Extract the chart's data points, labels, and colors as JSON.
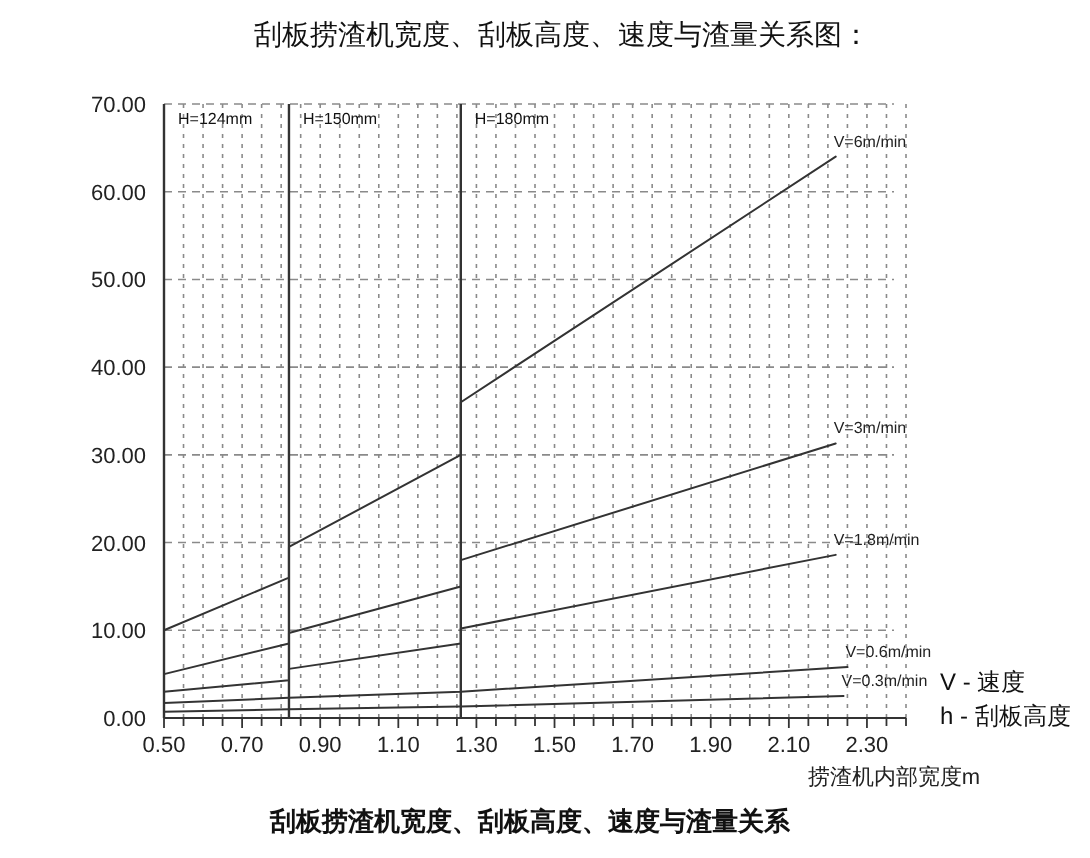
{
  "chart_data": {
    "type": "line",
    "title": "刮板捞渣机宽度、刮板高度、速度与渣量关系图：",
    "xlabel": "捞渣机内部宽度m",
    "annotations": [
      "H=124mm",
      "H=150mm",
      "H=180mm",
      "V - 速度",
      "h - 刮板高度",
      "刮板捞渣机宽度、刮板高度、速度与渣量关系"
    ],
    "x": [
      0.5,
      0.82,
      0.82,
      1.26,
      1.26,
      2.22
    ],
    "series": [
      {
        "name": "V=6m/min",
        "color": "#333333",
        "values": [
          10,
          16,
          19.5,
          30,
          36,
          64
        ]
      },
      {
        "name": "V=3m/min",
        "color": "#333333",
        "values": [
          5,
          8.5,
          9.7,
          15,
          18,
          31.3
        ]
      },
      {
        "name": "V=1.8m/min",
        "color": "#333333",
        "values": [
          3,
          4.3,
          5.6,
          8.5,
          10.2,
          18.6
        ]
      },
      {
        "name": "V=0.6m/min",
        "color": "#333333",
        "x": [
          0.5,
          0.82,
          0.82,
          1.26,
          1.26,
          2.25
        ],
        "values": [
          1.7,
          2.3,
          2.3,
          3,
          3,
          5.8
        ]
      },
      {
        "name": "V=0.3m/min",
        "color": "#333333",
        "x": [
          0.5,
          0.82,
          0.82,
          1.26,
          1.26,
          2.24
        ],
        "values": [
          0.7,
          1,
          1,
          1.3,
          1.3,
          2.5
        ]
      }
    ],
    "xlim": [
      0.5,
      2.4
    ],
    "ylim": [
      0,
      70
    ],
    "xticks": [
      {
        "value": 0.5,
        "label": "0.50"
      },
      {
        "value": 0.55,
        "label": null
      },
      {
        "value": 0.6,
        "label": null
      },
      {
        "value": 0.65,
        "label": null
      },
      {
        "value": 0.7,
        "label": "0.70"
      },
      {
        "value": 0.75,
        "label": null
      },
      {
        "value": 0.8,
        "label": null
      },
      {
        "value": 0.85,
        "label": null
      },
      {
        "value": 0.9,
        "label": "0.90"
      },
      {
        "value": 0.95,
        "label": null
      },
      {
        "value": 1.0,
        "label": null
      },
      {
        "value": 1.05,
        "label": null
      },
      {
        "value": 1.1,
        "label": "1.10"
      },
      {
        "value": 1.15,
        "label": null
      },
      {
        "value": 1.2,
        "label": null
      },
      {
        "value": 1.25,
        "label": null
      },
      {
        "value": 1.3,
        "label": "1.30"
      },
      {
        "value": 1.35,
        "label": null
      },
      {
        "value": 1.4,
        "label": null
      },
      {
        "value": 1.45,
        "label": null
      },
      {
        "value": 1.5,
        "label": "1.50"
      },
      {
        "value": 1.55,
        "label": null
      },
      {
        "value": 1.6,
        "label": null
      },
      {
        "value": 1.65,
        "label": null
      },
      {
        "value": 1.7,
        "label": "1.70"
      },
      {
        "value": 1.75,
        "label": null
      },
      {
        "value": 1.8,
        "label": null
      },
      {
        "value": 1.85,
        "label": null
      },
      {
        "value": 1.9,
        "label": "1.90"
      },
      {
        "value": 1.95,
        "label": null
      },
      {
        "value": 2.0,
        "label": null
      },
      {
        "value": 2.05,
        "label": null
      },
      {
        "value": 2.1,
        "label": "2.10"
      },
      {
        "value": 2.15,
        "label": null
      },
      {
        "value": 2.2,
        "label": null
      },
      {
        "value": 2.25,
        "label": null
      },
      {
        "value": 2.3,
        "label": "2.30"
      },
      {
        "value": 2.35,
        "label": null
      },
      {
        "value": 2.4,
        "label": null
      }
    ],
    "yticks": [
      {
        "value": 0,
        "label": "0.00"
      },
      {
        "value": 10,
        "label": "10.00"
      },
      {
        "value": 20,
        "label": "20.00"
      },
      {
        "value": 30,
        "label": "30.00"
      },
      {
        "value": 40,
        "label": "40.00"
      },
      {
        "value": 50,
        "label": "50.00"
      },
      {
        "value": 60,
        "label": "60.00"
      },
      {
        "value": 70,
        "label": "70.00"
      }
    ],
    "ref_lines": [
      {
        "axis": "x",
        "value": 0.82,
        "color": "#333333"
      },
      {
        "axis": "x",
        "value": 1.26,
        "color": "#333333"
      }
    ],
    "grid": true,
    "legend": false,
    "marker": "none",
    "line_style": "solid"
  }
}
